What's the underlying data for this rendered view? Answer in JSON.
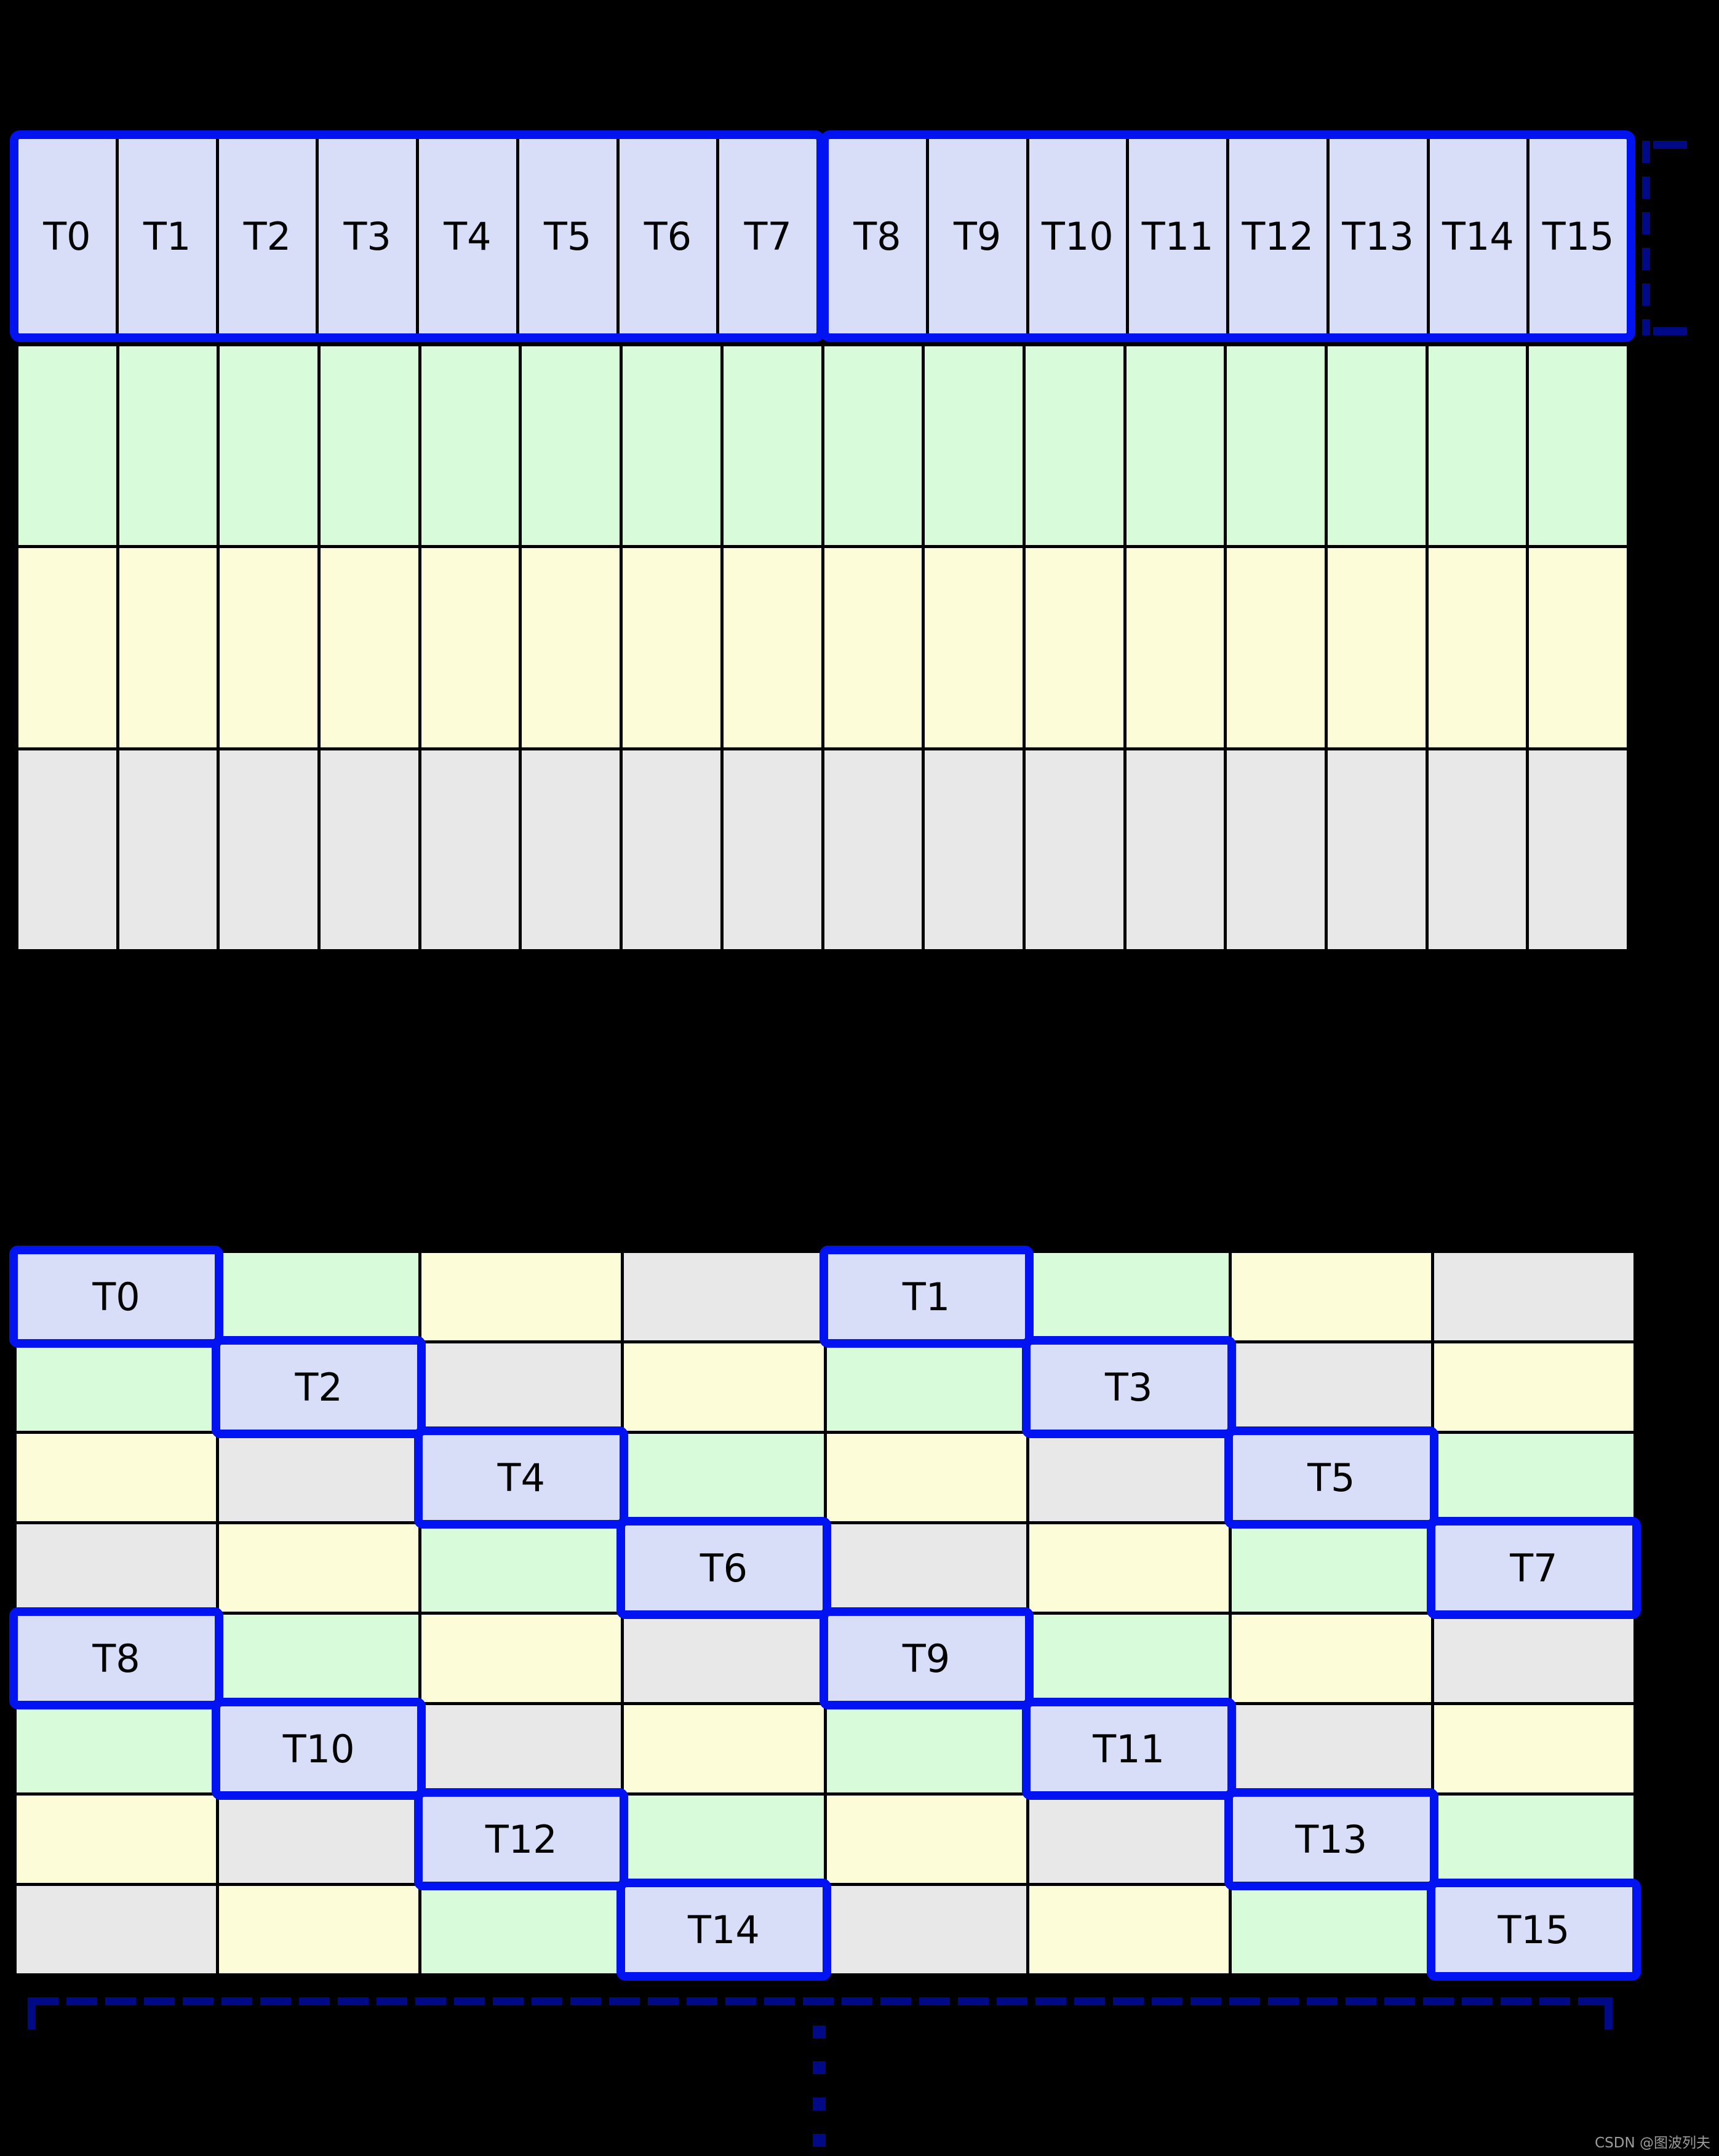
{
  "watermark": "CSDN @图波列夫",
  "palette": {
    "highlight_blue": "#0013f0",
    "cell_blue": "#d8ddf8",
    "cell_green": "#d8fcda",
    "cell_yellow": "#fcfcd9",
    "cell_gray": "#e8e8e8",
    "bracket_navy": "#000a87",
    "gridline_black": "#000000",
    "background": "#000000",
    "label_text": "#000000",
    "watermark_gray": "#9c9c9c"
  },
  "top_grid": {
    "columns": 16,
    "thread_groups": [
      {
        "labels": [
          "T0",
          "T1",
          "T2",
          "T3",
          "T4",
          "T5",
          "T6",
          "T7"
        ]
      },
      {
        "labels": [
          "T8",
          "T9",
          "T10",
          "T11",
          "T12",
          "T13",
          "T14",
          "T15"
        ]
      }
    ],
    "memory_row_colors": [
      "green",
      "yellow",
      "gray"
    ]
  },
  "bottom_grid": {
    "rows": 8,
    "columns": 8,
    "color_matrix": [
      [
        "blue",
        "green",
        "yellow",
        "gray",
        "blue",
        "green",
        "yellow",
        "gray"
      ],
      [
        "green",
        "blue",
        "gray",
        "yellow",
        "green",
        "blue",
        "gray",
        "yellow"
      ],
      [
        "yellow",
        "gray",
        "blue",
        "green",
        "yellow",
        "gray",
        "blue",
        "green"
      ],
      [
        "gray",
        "yellow",
        "green",
        "blue",
        "gray",
        "yellow",
        "green",
        "blue"
      ],
      [
        "blue",
        "green",
        "yellow",
        "gray",
        "blue",
        "green",
        "yellow",
        "gray"
      ],
      [
        "green",
        "blue",
        "gray",
        "yellow",
        "green",
        "blue",
        "gray",
        "yellow"
      ],
      [
        "yellow",
        "gray",
        "blue",
        "green",
        "yellow",
        "gray",
        "blue",
        "green"
      ],
      [
        "gray",
        "yellow",
        "green",
        "blue",
        "gray",
        "yellow",
        "green",
        "blue"
      ]
    ],
    "thread_cells": [
      {
        "label": "T0",
        "row": 0,
        "col": 0
      },
      {
        "label": "T1",
        "row": 0,
        "col": 4
      },
      {
        "label": "T2",
        "row": 1,
        "col": 1
      },
      {
        "label": "T3",
        "row": 1,
        "col": 5
      },
      {
        "label": "T4",
        "row": 2,
        "col": 2
      },
      {
        "label": "T5",
        "row": 2,
        "col": 6
      },
      {
        "label": "T6",
        "row": 3,
        "col": 3
      },
      {
        "label": "T7",
        "row": 3,
        "col": 7
      },
      {
        "label": "T8",
        "row": 4,
        "col": 0
      },
      {
        "label": "T9",
        "row": 4,
        "col": 4
      },
      {
        "label": "T10",
        "row": 5,
        "col": 1
      },
      {
        "label": "T11",
        "row": 5,
        "col": 5
      },
      {
        "label": "T12",
        "row": 6,
        "col": 2
      },
      {
        "label": "T13",
        "row": 6,
        "col": 6
      },
      {
        "label": "T14",
        "row": 7,
        "col": 3
      },
      {
        "label": "T15",
        "row": 7,
        "col": 7
      }
    ]
  }
}
